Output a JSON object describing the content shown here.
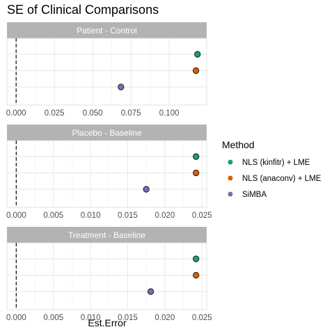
{
  "chart_data": {
    "type": "scatter",
    "title": "SE of Clinical Comparisons",
    "xlabel": "Est.Error",
    "ylabel": "",
    "grid": true,
    "legend": {
      "title": "Method",
      "position": "right",
      "entries": [
        {
          "name": "NLS (kinfitr) + LME",
          "color": "#1b9e77"
        },
        {
          "name": "NLS (anaconv) + LME",
          "color": "#d95f02"
        },
        {
          "name": "SiMBA",
          "color": "#7570b3"
        }
      ]
    },
    "reference_line": {
      "x": 0,
      "style": "dashed"
    },
    "panels": [
      {
        "label": "Patient - Control",
        "xlim": [
          -0.006,
          0.1245
        ],
        "ticks": [
          "0.000",
          "0.025",
          "0.050",
          "0.075",
          "0.100"
        ],
        "tick_values": [
          0,
          0.025,
          0.05,
          0.075,
          0.1
        ],
        "values": [
          0.1185,
          0.1175,
          0.0685
        ]
      },
      {
        "label": "Placebo - Baseline",
        "xlim": [
          -0.00125,
          0.02563
        ],
        "ticks": [
          "0.000",
          "0.005",
          "0.010",
          "0.015",
          "0.020",
          "0.025"
        ],
        "tick_values": [
          0,
          0.005,
          0.01,
          0.015,
          0.02,
          0.025
        ],
        "values": [
          0.0242,
          0.0242,
          0.0175
        ]
      },
      {
        "label": "Treatment - Baseline",
        "xlim": [
          -0.00125,
          0.02563
        ],
        "ticks": [
          "0.000",
          "0.005",
          "0.010",
          "0.015",
          "0.020",
          "0.025"
        ],
        "tick_values": [
          0,
          0.005,
          0.01,
          0.015,
          0.02,
          0.025
        ],
        "values": [
          0.0242,
          0.0242,
          0.0181
        ]
      }
    ]
  }
}
